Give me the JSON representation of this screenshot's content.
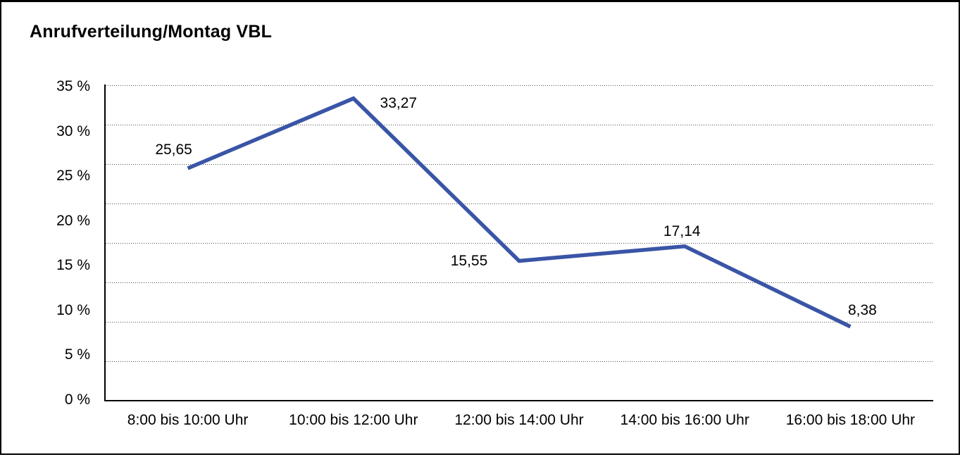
{
  "chart_data": {
    "type": "line",
    "title": "Anrufverteilung/Montag VBL",
    "categories": [
      "8:00 bis 10:00 Uhr",
      "10:00 bis 12:00 Uhr",
      "12:00 bis 14:00 Uhr",
      "14:00 bis 16:00 Uhr",
      "16:00 bis 18:00 Uhr"
    ],
    "values": [
      25.65,
      33.27,
      15.55,
      17.14,
      8.38
    ],
    "value_labels": [
      "25,65",
      "33,27",
      "15,55",
      "17,14",
      "8,38"
    ],
    "y_tick_labels": [
      "35 %",
      "30 %",
      "25 %",
      "20 %",
      "15 %",
      "10 %",
      "5 %",
      "0 %"
    ],
    "ylabel": "",
    "xlabel": "",
    "ylim": [
      0,
      35
    ],
    "y_tick_step": 5,
    "grid": "horizontal-dotted",
    "legend": "none",
    "line_color": "#3A55A6",
    "axis_color": "#000000",
    "text_color": "#000000"
  }
}
